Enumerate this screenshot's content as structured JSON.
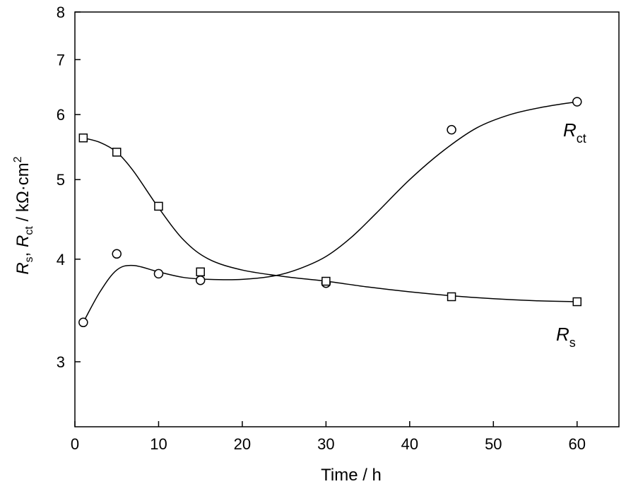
{
  "chart_data": {
    "type": "scatter",
    "xlabel": "Time / h",
    "ylabel_parts": {
      "r1": "R",
      "sub1": "s",
      "sep": ", ",
      "r2": "R",
      "sub2": "ct",
      "unit": " / kΩ·cm",
      "sup": "2"
    },
    "xlim": [
      0,
      65
    ],
    "ylim": [
      2.5,
      8
    ],
    "yscale": "log",
    "x_ticks": [
      0,
      10,
      20,
      30,
      40,
      50,
      60
    ],
    "y_ticks": [
      3,
      4,
      5,
      6,
      7,
      8
    ],
    "grid": false,
    "series": [
      {
        "name_main": "R",
        "name_sub": "ct",
        "marker": "circle",
        "x": [
          1,
          5,
          10,
          15,
          30,
          45,
          60
        ],
        "y": [
          3.35,
          4.06,
          3.84,
          3.77,
          3.74,
          5.75,
          6.22
        ],
        "fit": [
          [
            1,
            3.35
          ],
          [
            3,
            3.65
          ],
          [
            5,
            3.88
          ],
          [
            7,
            3.93
          ],
          [
            10,
            3.86
          ],
          [
            13,
            3.8
          ],
          [
            16,
            3.78
          ],
          [
            20,
            3.78
          ],
          [
            24,
            3.82
          ],
          [
            27,
            3.9
          ],
          [
            30,
            4.03
          ],
          [
            33,
            4.25
          ],
          [
            36,
            4.55
          ],
          [
            40,
            5.0
          ],
          [
            44,
            5.42
          ],
          [
            48,
            5.78
          ],
          [
            52,
            6.0
          ],
          [
            56,
            6.13
          ],
          [
            60,
            6.22
          ]
        ]
      },
      {
        "name_main": "R",
        "name_sub": "s",
        "marker": "square",
        "x": [
          1,
          5,
          10,
          15,
          30,
          45,
          60
        ],
        "y": [
          5.62,
          5.4,
          4.64,
          3.86,
          3.76,
          3.6,
          3.55
        ],
        "fit": [
          [
            1,
            5.62
          ],
          [
            3,
            5.55
          ],
          [
            5,
            5.4
          ],
          [
            7,
            5.12
          ],
          [
            10,
            4.62
          ],
          [
            13,
            4.22
          ],
          [
            16,
            4.0
          ],
          [
            20,
            3.88
          ],
          [
            25,
            3.81
          ],
          [
            30,
            3.76
          ],
          [
            35,
            3.7
          ],
          [
            40,
            3.65
          ],
          [
            45,
            3.61
          ],
          [
            50,
            3.58
          ],
          [
            55,
            3.56
          ],
          [
            60,
            3.55
          ]
        ]
      }
    ]
  }
}
